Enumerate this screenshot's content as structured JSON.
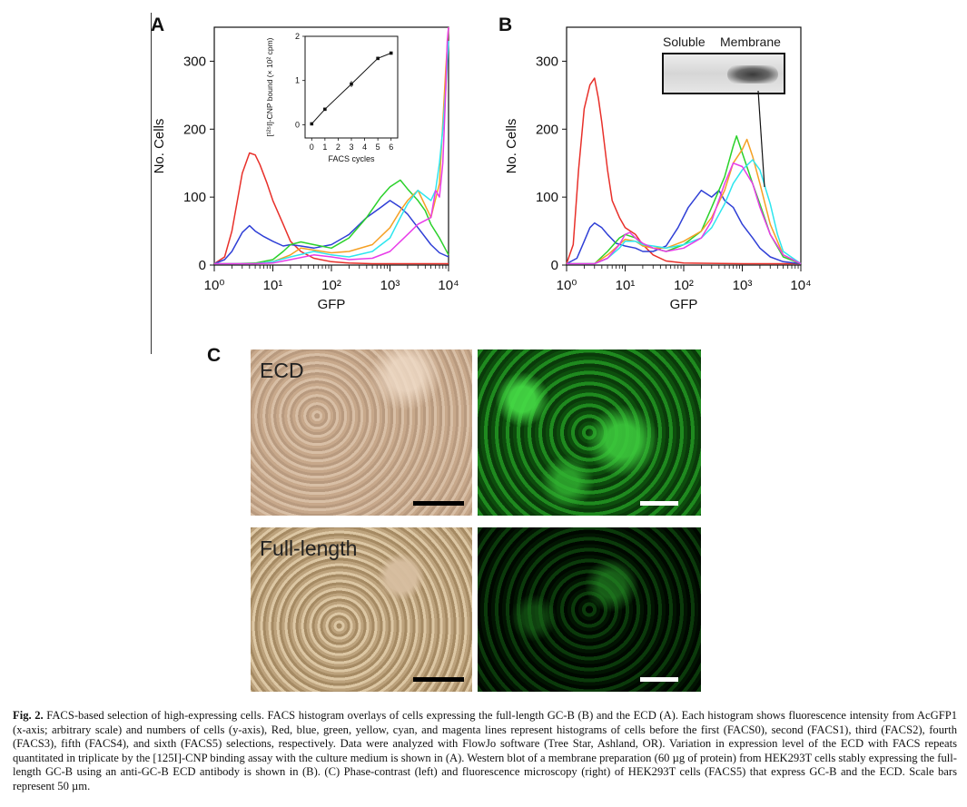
{
  "figure": {
    "panel_a_label": "A",
    "panel_b_label": "B",
    "panel_c_label": "C",
    "blot_soluble_label": "Soluble",
    "blot_membrane_label": "Membrane",
    "ecd_label": "ECD",
    "full_length_label": "Full-length"
  },
  "colors": {
    "FACS0": "#e8302a",
    "FACS1": "#2f3fd6",
    "FACS2": "#2bd12b",
    "FACS3": "#f5a024",
    "FACS4": "#2ee6ee",
    "FACS5": "#e83ce8"
  },
  "chart_data": [
    {
      "type": "line",
      "panel": "A",
      "xlabel": "GFP",
      "ylabel": "No. Cells",
      "x_scale": "log",
      "xlim": [
        1,
        10000
      ],
      "ylim": [
        0,
        350
      ],
      "x_tick_labels": [
        "10⁰",
        "10¹",
        "10²",
        "10³",
        "10⁴"
      ],
      "y_ticks": [
        0,
        100,
        200,
        300
      ],
      "series": [
        {
          "key": "FACS0",
          "x": [
            1,
            1.5,
            2,
            3,
            4,
            5,
            6,
            8,
            10,
            15,
            20,
            30,
            50,
            100,
            200,
            500,
            1000,
            2000,
            5000,
            10000
          ],
          "y": [
            2,
            12,
            50,
            135,
            165,
            162,
            148,
            120,
            95,
            60,
            35,
            20,
            10,
            5,
            3,
            2,
            2,
            2,
            2,
            2
          ]
        },
        {
          "key": "FACS1",
          "x": [
            1,
            1.5,
            2,
            3,
            4,
            5,
            7,
            10,
            15,
            20,
            30,
            50,
            100,
            200,
            400,
            700,
            1000,
            1500,
            2000,
            3000,
            5000,
            7000,
            10000
          ],
          "y": [
            2,
            8,
            20,
            48,
            58,
            50,
            42,
            35,
            28,
            30,
            28,
            25,
            30,
            45,
            70,
            85,
            95,
            85,
            75,
            55,
            30,
            18,
            12
          ]
        },
        {
          "key": "FACS2",
          "x": [
            1,
            2,
            5,
            10,
            15,
            20,
            30,
            50,
            100,
            200,
            400,
            700,
            1000,
            1500,
            2000,
            3000,
            4000,
            5000,
            7000,
            10000
          ],
          "y": [
            2,
            2,
            3,
            8,
            20,
            30,
            34,
            30,
            25,
            40,
            70,
            100,
            115,
            125,
            112,
            95,
            80,
            60,
            40,
            15
          ]
        },
        {
          "key": "FACS3",
          "x": [
            1,
            2,
            5,
            10,
            20,
            30,
            50,
            100,
            200,
            500,
            1000,
            1500,
            2000,
            3000,
            5000,
            7000,
            9000,
            10000
          ],
          "y": [
            2,
            2,
            2,
            5,
            15,
            25,
            22,
            18,
            20,
            30,
            55,
            80,
            95,
            110,
            70,
            120,
            290,
            350
          ]
        },
        {
          "key": "FACS4",
          "x": [
            1,
            2,
            5,
            10,
            20,
            50,
            100,
            200,
            500,
            1000,
            1500,
            2000,
            3000,
            5000,
            6000,
            7000,
            8000,
            9000,
            10000
          ],
          "y": [
            2,
            2,
            2,
            5,
            12,
            20,
            15,
            12,
            20,
            40,
            70,
            90,
            110,
            95,
            110,
            150,
            200,
            260,
            330
          ]
        },
        {
          "key": "FACS5",
          "x": [
            1,
            2,
            5,
            10,
            20,
            50,
            100,
            200,
            500,
            1000,
            2000,
            3000,
            5000,
            6000,
            7000,
            8000,
            9000,
            9500,
            10000
          ],
          "y": [
            2,
            2,
            2,
            3,
            8,
            15,
            12,
            8,
            10,
            20,
            45,
            60,
            70,
            110,
            100,
            150,
            260,
            330,
            350
          ]
        }
      ]
    },
    {
      "type": "line",
      "panel": "A-inset",
      "xlabel": "FACS cycles",
      "ylabel": "[¹²⁵I]-CNP bound (× 10² cpm)",
      "xlim": [
        -0.5,
        6.5
      ],
      "ylim": [
        -0.3,
        2
      ],
      "x_ticks": [
        0,
        1,
        2,
        3,
        4,
        5,
        6
      ],
      "y_ticks": [
        0,
        1,
        2
      ],
      "x": [
        0,
        1,
        3,
        5,
        6
      ],
      "y": [
        0.02,
        0.35,
        0.92,
        1.5,
        1.62
      ],
      "error": [
        0.02,
        0.03,
        0.07,
        0.03,
        0.03
      ]
    },
    {
      "type": "line",
      "panel": "B",
      "xlabel": "GFP",
      "ylabel": "No. Cells",
      "x_scale": "log",
      "xlim": [
        1,
        10000
      ],
      "ylim": [
        0,
        350
      ],
      "x_tick_labels": [
        "10⁰",
        "10¹",
        "10²",
        "10³",
        "10⁴"
      ],
      "y_ticks": [
        0,
        100,
        200,
        300
      ],
      "series": [
        {
          "key": "FACS0",
          "x": [
            1,
            1.3,
            1.6,
            2,
            2.5,
            3,
            3.5,
            4,
            5,
            6,
            8,
            10,
            15,
            20,
            30,
            50,
            100,
            1000,
            10000
          ],
          "y": [
            2,
            30,
            140,
            230,
            265,
            275,
            245,
            210,
            140,
            95,
            70,
            55,
            45,
            30,
            15,
            6,
            3,
            2,
            2
          ]
        },
        {
          "key": "FACS1",
          "x": [
            1,
            1.5,
            2,
            2.5,
            3,
            4,
            5,
            7,
            10,
            15,
            20,
            30,
            50,
            80,
            120,
            200,
            300,
            400,
            500,
            700,
            1000,
            1500,
            2000,
            3000,
            5000,
            10000
          ],
          "y": [
            2,
            10,
            35,
            55,
            62,
            55,
            45,
            32,
            28,
            25,
            20,
            20,
            28,
            55,
            85,
            110,
            100,
            110,
            95,
            85,
            60,
            40,
            25,
            12,
            5,
            2
          ]
        },
        {
          "key": "FACS2",
          "x": [
            1,
            3,
            5,
            8,
            10,
            15,
            20,
            30,
            50,
            100,
            200,
            300,
            500,
            700,
            800,
            1000,
            1500,
            2000,
            3000,
            5000,
            10000
          ],
          "y": [
            2,
            2,
            20,
            40,
            45,
            40,
            30,
            25,
            20,
            30,
            50,
            85,
            130,
            175,
            190,
            165,
            120,
            90,
            45,
            12,
            2
          ]
        },
        {
          "key": "FACS3",
          "x": [
            1,
            3,
            5,
            8,
            10,
            15,
            20,
            30,
            50,
            100,
            200,
            300,
            500,
            700,
            1000,
            1200,
            1500,
            2000,
            3000,
            5000,
            10000
          ],
          "y": [
            2,
            2,
            15,
            30,
            38,
            35,
            28,
            25,
            25,
            35,
            50,
            70,
            110,
            150,
            170,
            185,
            160,
            120,
            60,
            15,
            2
          ]
        },
        {
          "key": "FACS4",
          "x": [
            1,
            3,
            5,
            8,
            10,
            15,
            20,
            30,
            50,
            100,
            200,
            300,
            500,
            700,
            1000,
            1500,
            2000,
            3000,
            4000,
            5000,
            10000
          ],
          "y": [
            2,
            2,
            10,
            25,
            35,
            35,
            30,
            28,
            25,
            30,
            40,
            55,
            90,
            120,
            140,
            155,
            140,
            90,
            45,
            20,
            2
          ]
        },
        {
          "key": "FACS5",
          "x": [
            1,
            3,
            5,
            8,
            10,
            12,
            15,
            20,
            30,
            50,
            100,
            200,
            300,
            500,
            700,
            1000,
            1500,
            2000,
            3000,
            5000,
            10000
          ],
          "y": [
            2,
            2,
            10,
            30,
            45,
            48,
            40,
            32,
            25,
            20,
            25,
            40,
            65,
            120,
            150,
            145,
            120,
            85,
            45,
            15,
            2
          ]
        }
      ]
    }
  ],
  "caption": {
    "label": "Fig. 2.",
    "text": "FACS-based selection of high-expressing cells. FACS histogram overlays of cells expressing the full-length GC-B (B) and the ECD (A). Each histogram shows fluorescence intensity from AcGFP1 (x-axis; arbitrary scale) and numbers of cells (y-axis), Red, blue, green, yellow, cyan, and magenta lines represent histograms of cells before the first (FACS0), second (FACS1), third (FACS2), fourth (FACS3), fifth (FACS4), and sixth (FACS5) selections, respectively. Data were analyzed with FlowJo software (Tree Star, Ashland, OR). Variation in expression level of the ECD with FACS repeats quantitated in triplicate by the [125I]-CNP binding assay with the culture medium is shown in (A). Western blot of a membrane preparation (60 µg of protein) from HEK293T cells stably expressing the full-length GC-B using an anti-GC-B ECD antibody is shown in (B). (C) Phase-contrast (left) and fluorescence microscopy (right) of HEK293T cells (FACS5) that express GC-B and the ECD. Scale bars represent 50 µm."
  }
}
